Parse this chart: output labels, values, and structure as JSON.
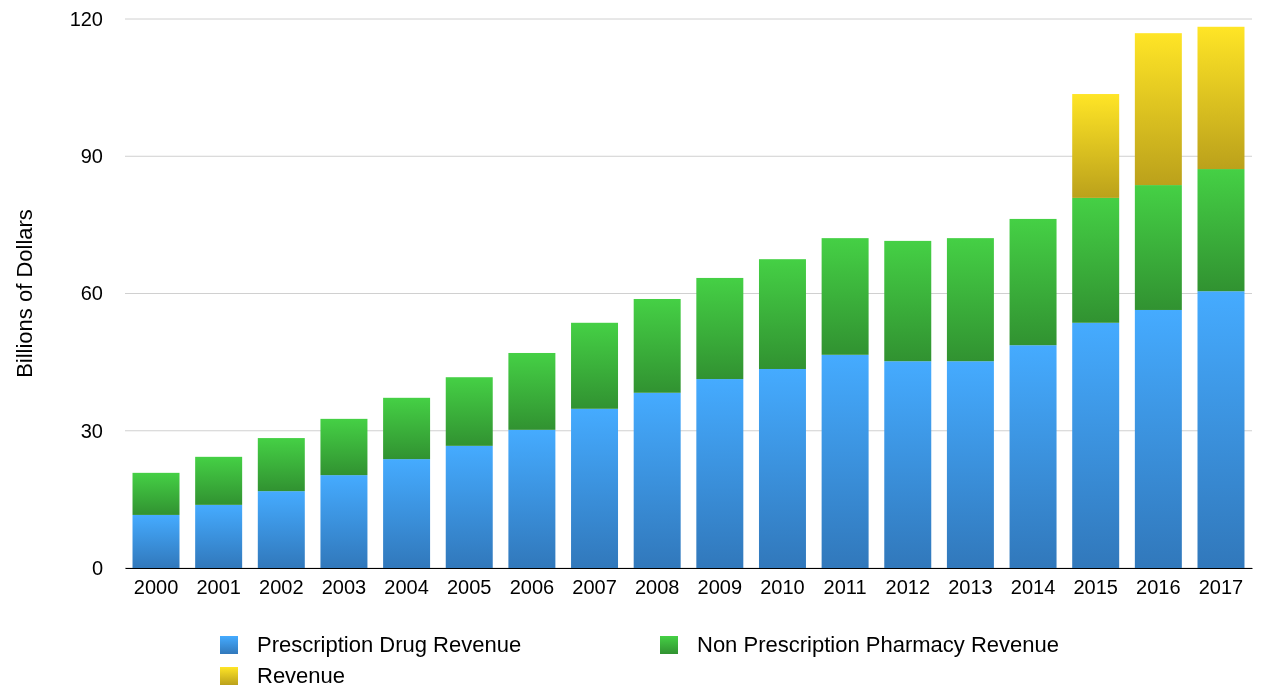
{
  "chart_data": {
    "type": "bar",
    "ylabel": "Billions of Dollars",
    "stacked": true,
    "grid": "y",
    "legend": "bottom",
    "ylim": [
      0,
      120
    ],
    "yticks": [
      0,
      30,
      60,
      90,
      120
    ],
    "categories": [
      "2000",
      "2001",
      "2002",
      "2003",
      "2004",
      "2005",
      "2006",
      "2007",
      "2008",
      "2009",
      "2010",
      "2011",
      "2012",
      "2013",
      "2014",
      "2015",
      "2016",
      "2017"
    ],
    "series": [
      {
        "name": "Prescription Drug Revenue",
        "color": "#3a8fe0",
        "values": [
          11.6,
          13.8,
          16.8,
          20.3,
          23.8,
          26.7,
          30.2,
          34.8,
          38.3,
          41.3,
          43.5,
          46.6,
          45.2,
          45.2,
          48.7,
          53.6,
          56.4,
          60.5
        ]
      },
      {
        "name": "Non Prescription Pharmacy Revenue",
        "color": "#3aae3a",
        "values": [
          9.2,
          10.5,
          11.6,
          12.3,
          13.4,
          15.0,
          16.8,
          18.8,
          20.5,
          22.1,
          24.0,
          25.5,
          26.3,
          26.9,
          27.6,
          27.3,
          27.3,
          26.7
        ]
      },
      {
        "name": "Revenue",
        "color": "#e0c020",
        "values": [
          null,
          null,
          null,
          null,
          null,
          null,
          null,
          null,
          null,
          null,
          null,
          null,
          null,
          null,
          null,
          22.7,
          33.2,
          31.1
        ]
      }
    ]
  }
}
